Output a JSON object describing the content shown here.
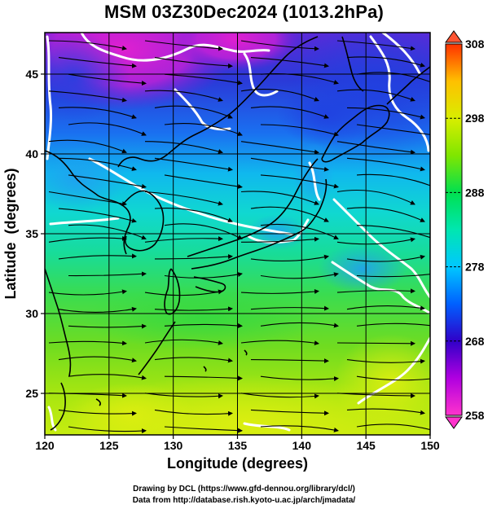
{
  "title": "MSM 03Z30Dec2024 (1013.2hPa)",
  "credits": {
    "line1": "Drawing by DCL (https://www.gfd-dennou.org/library/dcl/)",
    "line2": "Data from http://database.rish.kyoto-u.ac.jp/arch/jmadata/"
  },
  "chart_data": {
    "type": "heatmap",
    "xlabel": "Longitude (degrees)",
    "ylabel": "Latitude  (degrees)",
    "xlim": [
      120,
      150
    ],
    "ylim": [
      22.4,
      47.6
    ],
    "x_ticks": [
      120,
      125,
      130,
      135,
      140,
      145,
      150
    ],
    "y_ticks": [
      25,
      30,
      35,
      40,
      45
    ],
    "x_tick_labels": [
      "120",
      "125",
      "130",
      "135",
      "140",
      "145",
      "150"
    ],
    "y_tick_labels": [
      "25",
      "30",
      "35",
      "40",
      "45"
    ],
    "grid": true,
    "grid_color": "#000000",
    "colorbar": {
      "min": 258,
      "max": 308,
      "ticks": [
        258,
        268,
        278,
        288,
        298,
        308
      ],
      "tick_labels": [
        "258",
        "268",
        "278",
        "288",
        "298",
        "308"
      ],
      "colors": [
        "#ff33cc",
        "#b300e6",
        "#3300cc",
        "#0066ff",
        "#00ccff",
        "#00e6c8",
        "#00e650",
        "#80e600",
        "#d9ee00",
        "#ffcc00",
        "#ff8000",
        "#ff1a00"
      ]
    },
    "field": {
      "description_units": "K",
      "overlay": "streamlines",
      "contour_color": "#ffffff"
    }
  },
  "colors": {
    "background": "#ffffff",
    "coastline": "#000000",
    "streamline": "#000000",
    "contour": "#ffffff"
  }
}
